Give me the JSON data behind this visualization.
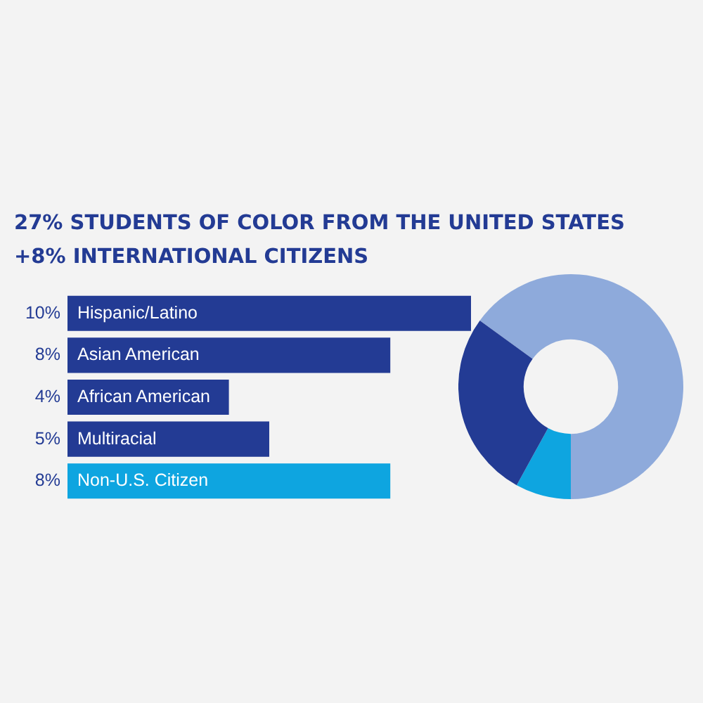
{
  "chart_data": [
    {
      "type": "bar",
      "title": "27% STUDENTS OF COLOR FROM THE UNITED STATES",
      "subtitle": "+8% INTERNATIONAL CITIZENS",
      "orientation": "horizontal",
      "categories": [
        "Hispanic/Latino",
        "Asian American",
        "African American",
        "Multiracial",
        "Non-U.S. Citizen"
      ],
      "values": [
        10,
        8,
        4,
        5,
        8
      ],
      "colors": [
        "#233b94",
        "#233b94",
        "#233b94",
        "#233b94",
        "#0ea5e0"
      ],
      "value_labels": [
        "10%",
        "8%",
        "4%",
        "5%",
        "8%"
      ],
      "xlim": [
        0,
        10
      ],
      "tick_labels": false
    },
    {
      "type": "donut",
      "categories": [
        null,
        null,
        null
      ],
      "values": [
        65,
        8,
        27
      ],
      "colors": [
        "#8eaadb",
        "#0ea5e0",
        "#233b94"
      ]
    }
  ]
}
